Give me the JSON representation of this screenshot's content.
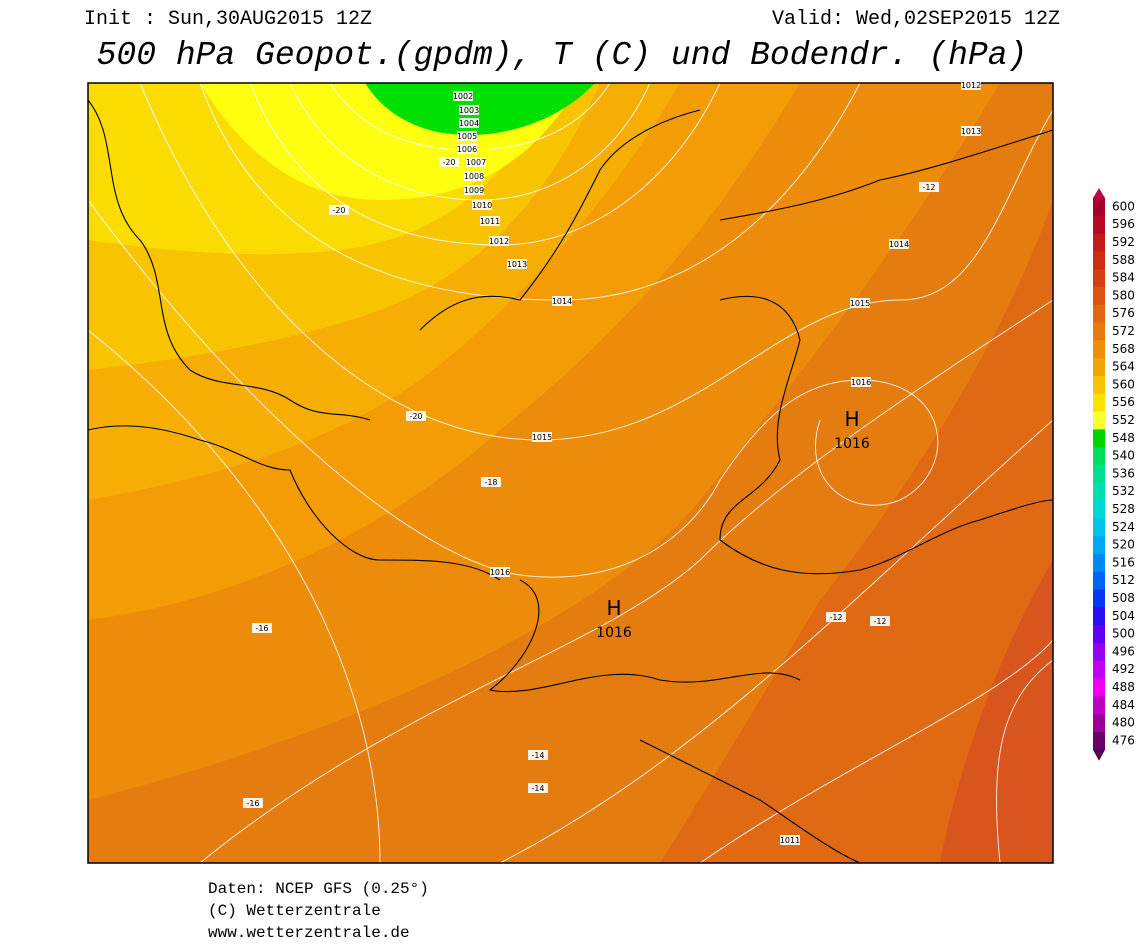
{
  "header": {
    "init": "Init : Sun,30AUG2015 12Z",
    "valid": "Valid: Wed,02SEP2015 12Z",
    "title": "500 hPa Geopot.(gpdm), T (C) und Bodendr. (hPa)"
  },
  "map": {
    "isobar_labels": [
      1002,
      1003,
      1004,
      1005,
      1006,
      1007,
      1008,
      1009,
      1010,
      1011,
      1012,
      1013,
      1014,
      1015,
      1016,
      1012,
      1013,
      1014,
      1015,
      1016,
      1011
    ],
    "temperature_labels": [
      -20,
      -20,
      -20,
      -18,
      -16,
      -16,
      -14,
      -14,
      -12,
      -12,
      -12
    ],
    "highs": [
      {
        "label": "H",
        "pressure": 1016
      },
      {
        "label": "H",
        "pressure": 1016
      }
    ]
  },
  "colorbar": {
    "levels": [
      600,
      596,
      592,
      588,
      584,
      580,
      576,
      572,
      568,
      564,
      560,
      556,
      552,
      548,
      540,
      536,
      532,
      528,
      524,
      520,
      516,
      512,
      508,
      504,
      500,
      496,
      492,
      488,
      484,
      480,
      476
    ],
    "colors": [
      "#a8002c",
      "#b80a22",
      "#c41a18",
      "#cc2c12",
      "#d43e10",
      "#da5410",
      "#e06810",
      "#e67c0e",
      "#ee900a",
      "#f2a404",
      "#f6c400",
      "#f8e400",
      "#ffff30",
      "#00d400",
      "#00de60",
      "#00e090",
      "#00e0b4",
      "#00d8d4",
      "#00c4ec",
      "#00a8f4",
      "#0088f4",
      "#0064f4",
      "#0038f0",
      "#2810f0",
      "#6000f0",
      "#9400f0",
      "#c400f0",
      "#f000f0",
      "#c000c0",
      "#980098",
      "#6a006a"
    ],
    "top_color": "#c00050",
    "bottom_color": "#500050"
  },
  "footer": [
    "Daten: NCEP GFS (0.25°)",
    "(C) Wetterzentrale",
    "www.wetterzentrale.de"
  ]
}
